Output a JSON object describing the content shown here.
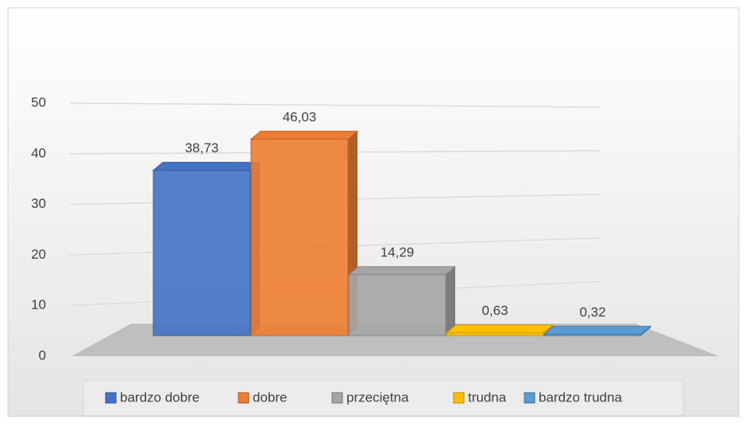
{
  "chart_data": {
    "type": "bar3d",
    "ylim": [
      0,
      50
    ],
    "yticks": [
      0,
      10,
      20,
      30,
      40,
      50
    ],
    "grid": true,
    "series": [
      {
        "name": "bardzo dobre",
        "color": "#4472c4",
        "values": [
          38.73
        ],
        "value_labels": [
          "38,73"
        ]
      },
      {
        "name": "dobre",
        "color": "#ed7d31",
        "values": [
          46.03
        ],
        "value_labels": [
          "46,03"
        ]
      },
      {
        "name": "przeciętna",
        "color": "#a5a5a5",
        "values": [
          14.29
        ],
        "value_labels": [
          "14,29"
        ]
      },
      {
        "name": "trudna",
        "color": "#ffc000",
        "values": [
          0.63
        ],
        "value_labels": [
          "0,63"
        ]
      },
      {
        "name": "bardzo trudna",
        "color": "#5b9bd5",
        "values": [
          0.32
        ],
        "value_labels": [
          "0,32"
        ]
      }
    ]
  }
}
